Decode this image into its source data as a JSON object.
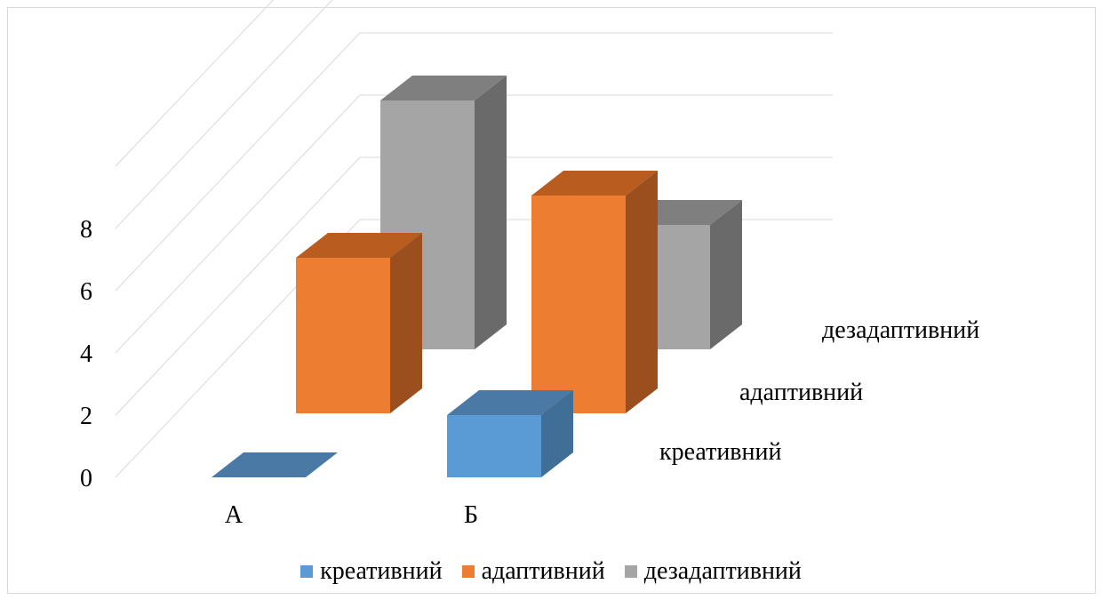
{
  "chart_data": {
    "type": "bar",
    "subtype": "3d-column",
    "categories": [
      "А",
      "Б"
    ],
    "series": [
      {
        "name": "креативний",
        "values": [
          0,
          2
        ]
      },
      {
        "name": "адаптивний",
        "values": [
          5,
          7
        ]
      },
      {
        "name": "дезадаптивний",
        "values": [
          8,
          4
        ]
      }
    ],
    "ylim": [
      0,
      10
    ],
    "yticks": [
      "0",
      "2",
      "4",
      "6",
      "8"
    ],
    "grid": true,
    "legend": "bottom",
    "colors": {
      "креативний": {
        "front": "#5b9bd5",
        "side": "#3f6e97",
        "top": "#4a79a6"
      },
      "адаптивний": {
        "front": "#ed7d31",
        "side": "#9b4f1e",
        "top": "#b85c20"
      },
      "дезадаптивний": {
        "front": "#a5a5a5",
        "side": "#6a6a6a",
        "top": "#7f7f7f"
      }
    },
    "gridColor": "#d9d9d9"
  }
}
